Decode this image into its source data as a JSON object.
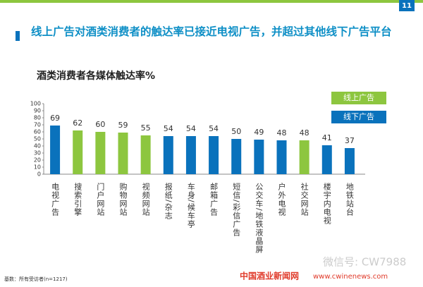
{
  "page_number": "11",
  "chart_data": {
    "type": "bar",
    "title": "线上广告对酒类消费者的触达率已接近电视广告，并超过其他线下广告平台",
    "subtitle": "酒类消费者各媒体触达率%",
    "categories": [
      "电视广告",
      "搜索引擎",
      "门户网站",
      "购物网站",
      "视频网站",
      "报纸/杂志",
      "车身/候车亭",
      "邮箱广告",
      "短信/彩信广告",
      "公交车/地铁液晶屏",
      "户外电视",
      "社交网站",
      "楼宇内电视",
      "地铁站台"
    ],
    "series": [
      {
        "name": "线上广告",
        "color": "#8dc63f",
        "values": [
          null,
          62,
          60,
          59,
          55,
          null,
          null,
          null,
          null,
          null,
          null,
          48,
          null,
          null
        ]
      },
      {
        "name": "线下广告",
        "color": "#0a72bc",
        "values": [
          69,
          null,
          null,
          null,
          null,
          54,
          54,
          54,
          50,
          49,
          48,
          null,
          41,
          37
        ]
      }
    ],
    "ylim": [
      0,
      100
    ],
    "yticks": [
      0,
      10,
      20,
      30,
      40,
      50,
      60,
      70,
      80,
      90,
      100
    ],
    "grid": false,
    "legend": "top-right",
    "footnote": "基数：所有受访者(n=1217)",
    "watermarks": [
      "微信号: CW7988",
      "中国酒业新闻网",
      "www.cwinenews.com"
    ]
  }
}
